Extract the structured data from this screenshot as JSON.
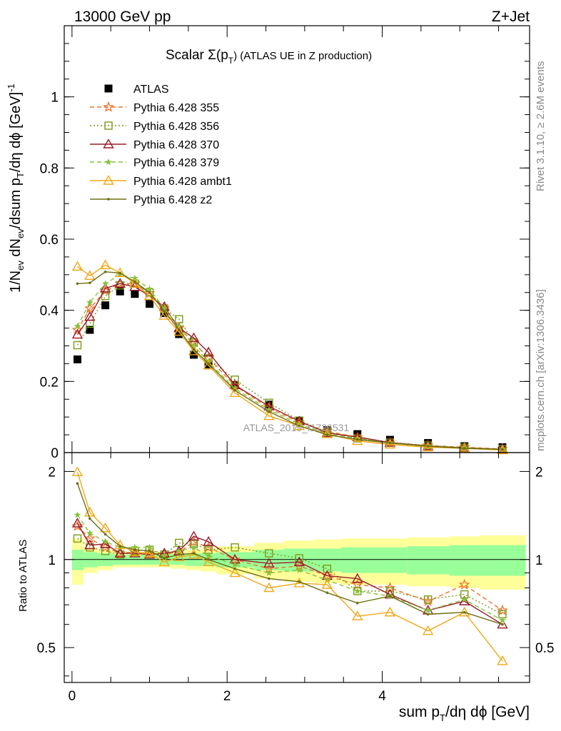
{
  "header": {
    "left": "13000 GeV pp",
    "right": "Z+Jet"
  },
  "side": {
    "rivet": "Rivet 3.1.10, ≥ 2.6M events",
    "mcplots": "mcplots.cern.ch [arXiv:1306.3436]"
  },
  "watermark": "ATLAS_2019_I1736531",
  "colors": {
    "ATLAS": "#000000",
    "p355": "#f0722a",
    "p356": "#7a9a17",
    "p370": "#9b1b2a",
    "p379": "#86c23a",
    "pambt1": "#f0a818",
    "pz2": "#6e6e12",
    "band_inner": "#99ff99",
    "band_outer": "#ffff99"
  },
  "chart_data": [
    {
      "type": "scatter",
      "panel": "main",
      "title": "Scalar Σ(pT) (ATLAS UE in Z production)",
      "title_main": "Scalar Σ(p",
      "title_sub": "T",
      "title_tail": ") (ATLAS UE in Z production)",
      "ylabel": "1/Nev dNev/dsum pT/dη dϕ [GeV]^-1",
      "ylabel_parts": [
        "1/N",
        "ev",
        " dN",
        "ev",
        "/dsum p",
        "T",
        "/dη dϕ  [GeV]",
        "-1"
      ],
      "xlim": [
        -0.1,
        5.9
      ],
      "ylim": [
        0,
        1.2
      ],
      "yticks": [
        0,
        0.2,
        0.4,
        0.6,
        0.8,
        1
      ],
      "ytick_labels": [
        "0",
        "0.2",
        "0.4",
        "0.6",
        "0.8",
        "1"
      ],
      "legend_position": "top-left",
      "x": [
        0.07,
        0.23,
        0.43,
        0.62,
        0.81,
        1.0,
        1.19,
        1.38,
        1.57,
        1.76,
        2.1,
        2.54,
        2.93,
        3.29,
        3.68,
        4.1,
        4.59,
        5.06,
        5.55
      ],
      "series": [
        {
          "name": "ATLAS",
          "key": "ATLAS",
          "marker": "filled-square",
          "line": "none",
          "values": [
            0.262,
            0.345,
            0.414,
            0.453,
            0.446,
            0.418,
            0.392,
            0.333,
            0.275,
            0.248,
            0.19,
            0.135,
            0.09,
            0.063,
            0.052,
            0.036,
            0.027,
            0.018,
            0.015
          ]
        },
        {
          "name": "Pythia 6.428 355",
          "key": "p355",
          "marker": "open-star",
          "line": "dashed",
          "values": [
            0.345,
            0.405,
            0.455,
            0.475,
            0.475,
            0.448,
            0.405,
            0.35,
            0.31,
            0.265,
            0.188,
            0.125,
            0.085,
            0.06,
            0.043,
            0.028,
            0.02,
            0.015,
            0.01
          ]
        },
        {
          "name": "Pythia 6.428 356",
          "key": "p356",
          "marker": "open-square",
          "line": "dotted",
          "values": [
            0.302,
            0.362,
            0.44,
            0.47,
            0.475,
            0.45,
            0.405,
            0.375,
            0.31,
            0.265,
            0.205,
            0.14,
            0.09,
            0.058,
            0.04,
            0.028,
            0.02,
            0.014,
            0.01
          ]
        },
        {
          "name": "Pythia 6.428 370",
          "key": "p370",
          "marker": "open-triangle",
          "line": "solid",
          "values": [
            0.332,
            0.382,
            0.462,
            0.475,
            0.466,
            0.44,
            0.41,
            0.35,
            0.322,
            0.282,
            0.19,
            0.13,
            0.088,
            0.055,
            0.044,
            0.028,
            0.018,
            0.013,
            0.009
          ]
        },
        {
          "name": "Pythia 6.428 379",
          "key": "p379",
          "marker": "star",
          "line": "dashed",
          "values": [
            0.355,
            0.422,
            0.475,
            0.5,
            0.49,
            0.46,
            0.405,
            0.355,
            0.3,
            0.255,
            0.18,
            0.12,
            0.08,
            0.053,
            0.04,
            0.027,
            0.018,
            0.013,
            0.009
          ]
        },
        {
          "name": "Pythia 6.428 ambt1",
          "key": "pambt1",
          "marker": "open-triangle",
          "line": "solid",
          "values": [
            0.523,
            0.497,
            0.527,
            0.505,
            0.475,
            0.44,
            0.385,
            0.34,
            0.285,
            0.245,
            0.168,
            0.103,
            0.075,
            0.052,
            0.033,
            0.023,
            0.015,
            0.012,
            0.007
          ]
        },
        {
          "name": "Pythia 6.428 z2",
          "key": "pz2",
          "marker": "dot",
          "line": "solid",
          "values": [
            0.475,
            0.477,
            0.508,
            0.505,
            0.48,
            0.45,
            0.398,
            0.345,
            0.29,
            0.25,
            0.175,
            0.115,
            0.075,
            0.05,
            0.037,
            0.027,
            0.018,
            0.012,
            0.009
          ]
        }
      ]
    },
    {
      "type": "scatter",
      "panel": "ratio",
      "ylabel": "Ratio to ATLAS",
      "xlabel": "sum pT/dη dϕ [GeV]",
      "xlabel_parts": [
        "sum p",
        "T",
        "/dη dϕ [GeV]"
      ],
      "xlim": [
        -0.1,
        5.9
      ],
      "ylim": [
        0.38,
        2.32
      ],
      "yscale": "log",
      "xticks": [
        0,
        2,
        4
      ],
      "xtick_labels": [
        "0",
        "2",
        "4"
      ],
      "yticks": [
        0.5,
        1,
        2
      ],
      "ytick_labels": [
        "0.5",
        "1",
        "2"
      ],
      "reference_line": 1,
      "band_edges": [
        0.0,
        0.15,
        0.33,
        0.53,
        0.72,
        0.91,
        1.09,
        1.28,
        1.47,
        1.66,
        1.86,
        2.35,
        2.73,
        3.12,
        3.47,
        3.89,
        4.32,
        4.87,
        5.26,
        5.85
      ],
      "band_inner": [
        0.08,
        0.06,
        0.05,
        0.04,
        0.04,
        0.04,
        0.04,
        0.04,
        0.05,
        0.05,
        0.06,
        0.08,
        0.09,
        0.09,
        0.1,
        0.1,
        0.11,
        0.12,
        0.12
      ],
      "band_outer": [
        0.18,
        0.1,
        0.08,
        0.06,
        0.06,
        0.06,
        0.06,
        0.07,
        0.08,
        0.09,
        0.11,
        0.14,
        0.16,
        0.17,
        0.18,
        0.18,
        0.19,
        0.2,
        0.21
      ],
      "x": [
        0.07,
        0.23,
        0.43,
        0.62,
        0.81,
        1.0,
        1.19,
        1.38,
        1.57,
        1.76,
        2.1,
        2.54,
        2.93,
        3.29,
        3.68,
        4.1,
        4.59,
        5.06,
        5.55
      ],
      "series": [
        {
          "key": "p355",
          "values": [
            1.3,
            1.18,
            1.1,
            1.05,
            1.06,
            1.05,
            1.04,
            1.06,
            1.15,
            1.1,
            1.0,
            0.93,
            0.95,
            0.88,
            0.82,
            0.8,
            0.72,
            0.82,
            0.67
          ]
        },
        {
          "key": "p356",
          "values": [
            1.18,
            1.1,
            1.07,
            1.04,
            1.07,
            1.08,
            1.04,
            1.14,
            1.13,
            1.08,
            1.1,
            1.05,
            1.01,
            0.93,
            0.78,
            0.78,
            0.73,
            0.76,
            0.65
          ]
        },
        {
          "key": "p370",
          "values": [
            1.33,
            1.12,
            1.13,
            1.05,
            1.05,
            1.04,
            1.05,
            1.07,
            1.2,
            1.15,
            1.0,
            0.97,
            0.98,
            0.88,
            0.86,
            0.76,
            0.67,
            0.72,
            0.6
          ]
        },
        {
          "key": "p379",
          "values": [
            1.42,
            1.23,
            1.15,
            1.1,
            1.1,
            1.1,
            1.03,
            1.07,
            1.1,
            1.03,
            0.96,
            0.9,
            0.92,
            0.85,
            0.78,
            0.75,
            0.67,
            0.73,
            0.62
          ]
        },
        {
          "key": "pambt1",
          "values": [
            1.99,
            1.45,
            1.28,
            1.12,
            1.06,
            1.05,
            0.98,
            1.02,
            1.04,
            0.98,
            0.9,
            0.8,
            0.83,
            0.82,
            0.64,
            0.66,
            0.57,
            0.66,
            0.45
          ]
        },
        {
          "key": "pz2",
          "values": [
            1.82,
            1.38,
            1.22,
            1.11,
            1.08,
            1.07,
            1.01,
            1.04,
            1.05,
            1.0,
            0.93,
            0.86,
            0.84,
            0.77,
            0.71,
            0.75,
            0.65,
            0.66,
            0.6
          ]
        }
      ]
    }
  ]
}
